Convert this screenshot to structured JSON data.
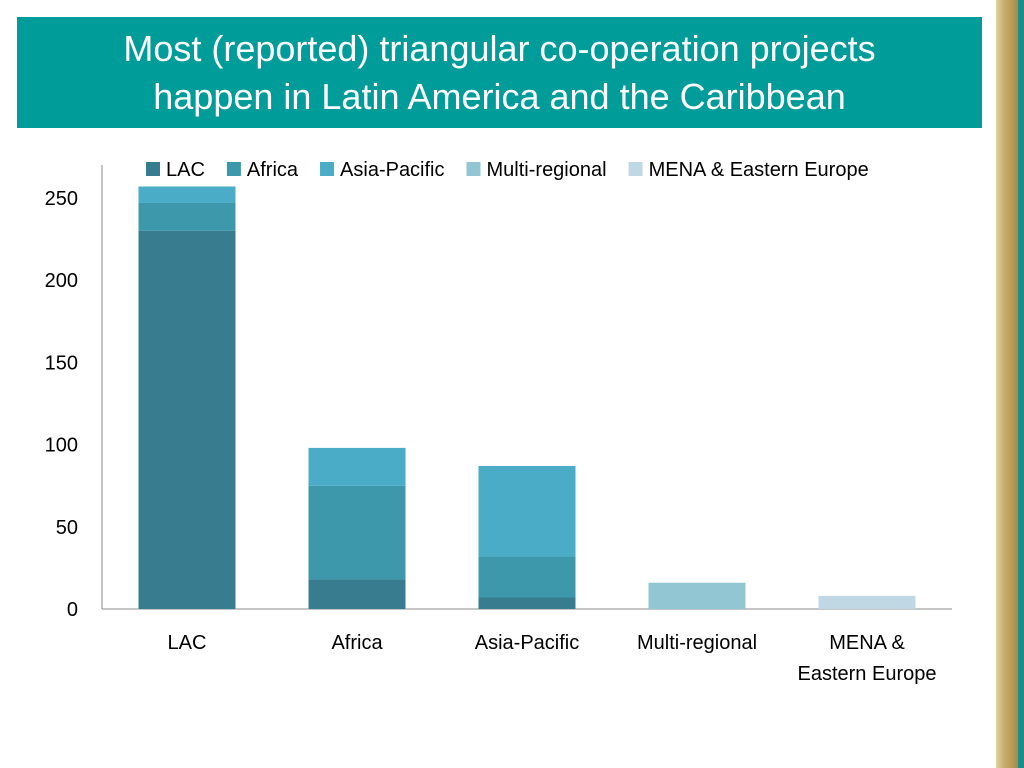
{
  "title": {
    "line1": "Most (reported) triangular co-operation projects",
    "line2": "happen in Latin America and the Caribbean"
  },
  "colors": {
    "title_bg": "#009c99",
    "title_text": "#ffffff",
    "axis": "#8c8c8c"
  },
  "chart_data": {
    "type": "bar",
    "stacked": true,
    "categories": [
      "LAC",
      "Africa",
      "Asia-Pacific",
      "Multi-regional",
      "MENA & Eastern Europe"
    ],
    "category_label_lines": [
      [
        "LAC"
      ],
      [
        "Africa"
      ],
      [
        "Asia-Pacific"
      ],
      [
        "Multi-regional"
      ],
      [
        "MENA &",
        "Eastern Europe"
      ]
    ],
    "series": [
      {
        "name": "LAC",
        "color": "#377c8f",
        "values": [
          230,
          18,
          7,
          0,
          0
        ]
      },
      {
        "name": "Africa",
        "color": "#3e98ab",
        "values": [
          17,
          57,
          25,
          0,
          0
        ]
      },
      {
        "name": "Asia-Pacific",
        "color": "#4aacc6",
        "values": [
          10,
          23,
          55,
          0,
          0
        ]
      },
      {
        "name": "Multi-regional",
        "color": "#93c6d3",
        "values": [
          0,
          0,
          0,
          16,
          0
        ]
      },
      {
        "name": "MENA & Eastern Europe",
        "color": "#c0d8e4",
        "values": [
          0,
          0,
          0,
          0,
          8
        ]
      }
    ],
    "ylim": [
      0,
      270
    ],
    "yticks": [
      0,
      50,
      100,
      150,
      200,
      250
    ],
    "grid": false,
    "legend": "top"
  }
}
